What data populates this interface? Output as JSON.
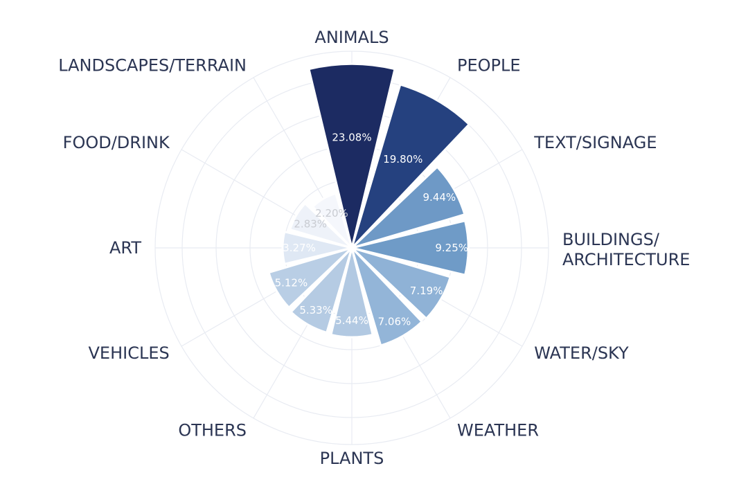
{
  "chart_data": {
    "type": "barpolar",
    "title": "",
    "direction": "clockwise",
    "rotation": "ANIMALS at top",
    "grid": true,
    "categories": [
      "ANIMALS",
      "PEOPLE",
      "TEXT/SIGNAGE",
      "BUILDINGS/ ARCHITECTURE",
      "WATER/SKY",
      "WEATHER",
      "PLANTS",
      "OTHERS",
      "VEHICLES",
      "ART",
      "FOOD/DRINK",
      "LANDSCAPES/TERRAIN"
    ],
    "values": [
      23.08,
      19.8,
      9.44,
      9.25,
      7.19,
      7.06,
      5.44,
      5.33,
      5.12,
      3.27,
      2.83,
      2.2
    ],
    "labels": [
      "23.08%",
      "19.80%",
      "9.44%",
      "9.25%",
      "7.19%",
      "7.06%",
      "5.44%",
      "5.33%",
      "5.12%",
      "3.27%",
      "2.83%",
      "2.20%"
    ],
    "colors": [
      "#1c2b62",
      "#25417f",
      "#6e99c6",
      "#6f9bc7",
      "#8fb2d6",
      "#93b5d8",
      "#b2c9e2",
      "#b5cbe3",
      "#b9cee5",
      "#dfe8f4",
      "#eef2f9",
      "#f5f7fc"
    ],
    "label_colors": [
      "#ffffff",
      "#ffffff",
      "#ffffff",
      "#ffffff",
      "#ffffff",
      "#ffffff",
      "#ffffff",
      "#ffffff",
      "#ffffff",
      "#ffffff",
      "#c9ccd2",
      "#c9ccd2"
    ]
  }
}
